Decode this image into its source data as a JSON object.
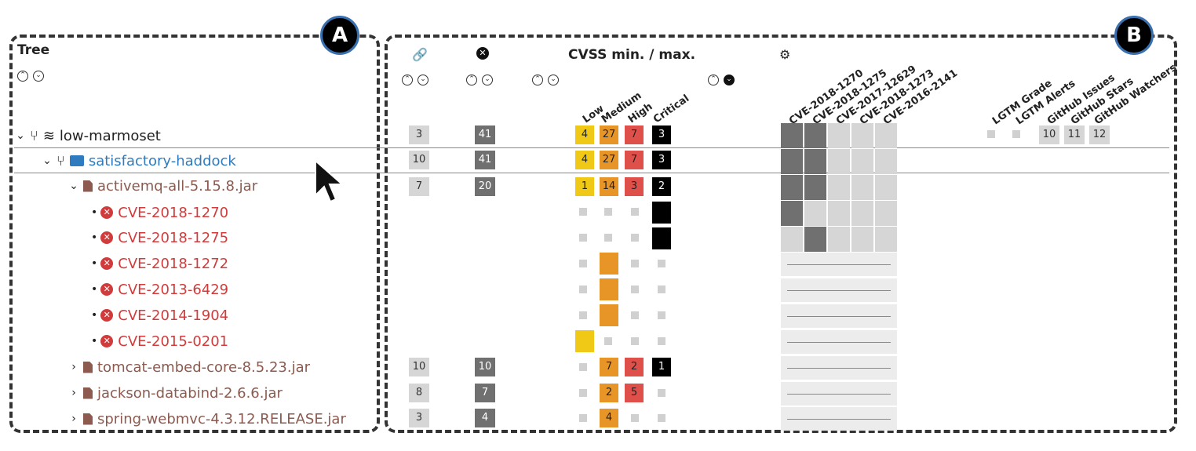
{
  "markers": {
    "a": "A",
    "b": "B"
  },
  "tree": {
    "title": "Tree",
    "rows": [
      {
        "label": "low-marmoset"
      },
      {
        "label": "satisfactory-haddock"
      },
      {
        "label": "activemq-all-5.15.8.jar"
      },
      {
        "label": "CVE-2018-1270"
      },
      {
        "label": "CVE-2018-1275"
      },
      {
        "label": "CVE-2018-1272"
      },
      {
        "label": "CVE-2013-6429"
      },
      {
        "label": "CVE-2014-1904"
      },
      {
        "label": "CVE-2015-0201"
      },
      {
        "label": "tomcat-embed-core-8.5.23.jar"
      },
      {
        "label": "jackson-databind-2.6.6.jar"
      },
      {
        "label": "spring-webmvc-4.3.12.RELEASE.jar"
      }
    ]
  },
  "matrix": {
    "cvss_title": "CVSS min. / max.",
    "severity_headers": [
      "Low",
      "Medium",
      "High",
      "Critical"
    ],
    "cve_headers": [
      "CVE-2018-1270",
      "CVE-2018-1275",
      "CVE-2017-12629",
      "CVE-2018-1273",
      "CVE-2016-2141"
    ],
    "repo_headers": [
      "LGTM Grade",
      "LGTM Alerts",
      "GitHub Issues",
      "GitHub Stars",
      "GitHub Watchers"
    ],
    "rows": [
      {
        "deps": "3",
        "vulns": "41",
        "low": "4",
        "medium": "27",
        "high": "7",
        "critical": "3",
        "repo": [
          "10",
          "11",
          "12"
        ]
      },
      {
        "deps": "10",
        "vulns": "41",
        "low": "4",
        "medium": "27",
        "high": "7",
        "critical": "3"
      },
      {
        "deps": "7",
        "vulns": "20",
        "low": "1",
        "medium": "14",
        "high": "3",
        "critical": "2"
      },
      {},
      {},
      {},
      {},
      {},
      {},
      {
        "deps": "10",
        "vulns": "10",
        "medium": "7",
        "high": "2",
        "critical": "1"
      },
      {
        "deps": "8",
        "vulns": "7",
        "medium": "2",
        "high": "5"
      },
      {
        "deps": "3",
        "vulns": "4",
        "medium": "4"
      }
    ]
  },
  "colors": {
    "low": "#f0c916",
    "medium": "#e89528",
    "high": "#e0504a",
    "critical": "#000000",
    "cve": "#d23b3b",
    "project": "#2e7bbf",
    "file": "#8c5a4f"
  }
}
